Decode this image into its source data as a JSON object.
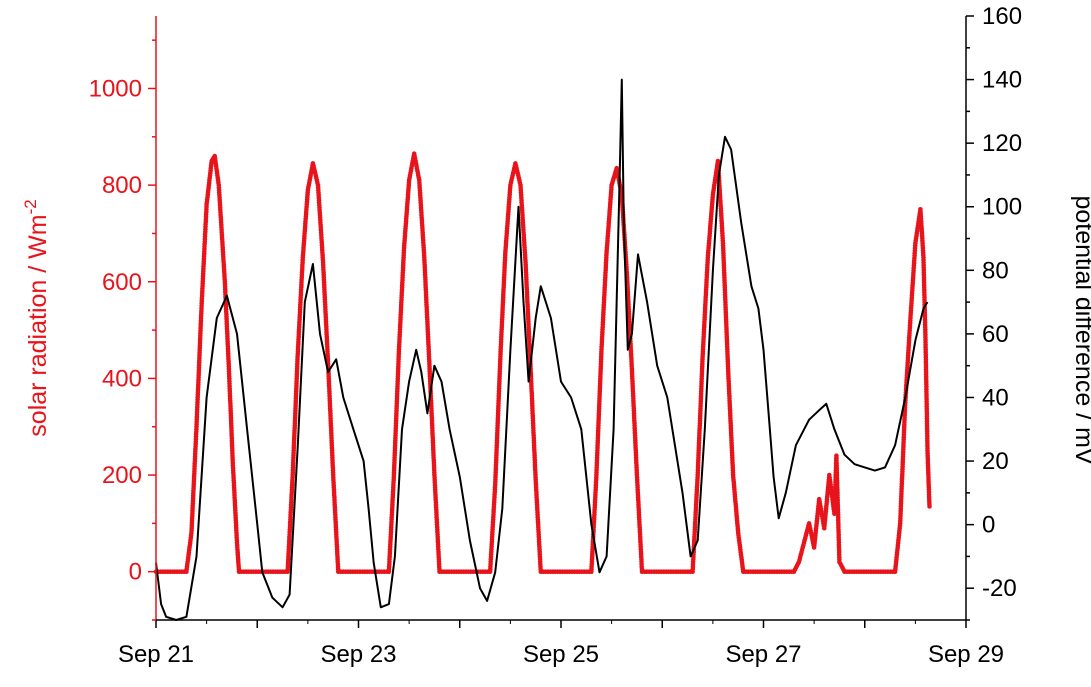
{
  "colors": {
    "radiation": "#e8141b",
    "potential": "#000000",
    "axis": "#000000"
  },
  "chart_data": {
    "type": "line",
    "x_unit": "days (Sep 21 = 0)",
    "x_range_labels": [
      "Sep 21",
      "Sep 29"
    ],
    "x_ticks": [
      {
        "day": 0,
        "label": "Sep 21"
      },
      {
        "day": 1,
        "label": ""
      },
      {
        "day": 2,
        "label": "Sep 23"
      },
      {
        "day": 3,
        "label": ""
      },
      {
        "day": 4,
        "label": "Sep 25"
      },
      {
        "day": 5,
        "label": ""
      },
      {
        "day": 6,
        "label": "Sep 27"
      },
      {
        "day": 7,
        "label": ""
      },
      {
        "day": 8,
        "label": "Sep 29"
      }
    ],
    "y_left": {
      "label": "solar radiation / Wm",
      "label_sup": "-2",
      "range": [
        -100,
        1150
      ],
      "ticks": [
        "0",
        "200",
        "400",
        "600",
        "800",
        "1000"
      ],
      "tick_values": [
        0,
        200,
        400,
        600,
        800,
        1000
      ]
    },
    "y_right": {
      "label": "potential difference / mV",
      "range": [
        -30,
        160
      ],
      "ticks": [
        "-20",
        "0",
        "20",
        "40",
        "60",
        "80",
        "100",
        "120",
        "140",
        "160"
      ],
      "tick_values": [
        -20,
        0,
        20,
        40,
        60,
        80,
        100,
        120,
        140,
        160
      ]
    },
    "series": [
      {
        "axis": "left",
        "style": "dots",
        "color": "#e8141b",
        "points": [
          [
            0.0,
            0
          ],
          [
            0.3,
            0
          ],
          [
            0.35,
            80
          ],
          [
            0.4,
            300
          ],
          [
            0.45,
            550
          ],
          [
            0.5,
            760
          ],
          [
            0.55,
            850
          ],
          [
            0.58,
            860
          ],
          [
            0.62,
            800
          ],
          [
            0.68,
            600
          ],
          [
            0.72,
            420
          ],
          [
            0.76,
            220
          ],
          [
            0.8,
            60
          ],
          [
            0.82,
            0
          ],
          [
            1.3,
            0
          ],
          [
            1.35,
            200
          ],
          [
            1.4,
            450
          ],
          [
            1.45,
            650
          ],
          [
            1.5,
            790
          ],
          [
            1.55,
            845
          ],
          [
            1.6,
            800
          ],
          [
            1.65,
            640
          ],
          [
            1.7,
            430
          ],
          [
            1.75,
            200
          ],
          [
            1.8,
            0
          ],
          [
            2.3,
            0
          ],
          [
            2.35,
            200
          ],
          [
            2.4,
            460
          ],
          [
            2.45,
            670
          ],
          [
            2.5,
            810
          ],
          [
            2.55,
            865
          ],
          [
            2.6,
            810
          ],
          [
            2.65,
            650
          ],
          [
            2.7,
            430
          ],
          [
            2.75,
            200
          ],
          [
            2.8,
            0
          ],
          [
            3.3,
            0
          ],
          [
            3.35,
            180
          ],
          [
            3.4,
            440
          ],
          [
            3.45,
            660
          ],
          [
            3.5,
            800
          ],
          [
            3.55,
            845
          ],
          [
            3.6,
            800
          ],
          [
            3.65,
            640
          ],
          [
            3.7,
            420
          ],
          [
            3.75,
            190
          ],
          [
            3.8,
            0
          ],
          [
            4.3,
            0
          ],
          [
            4.35,
            200
          ],
          [
            4.4,
            460
          ],
          [
            4.45,
            660
          ],
          [
            4.5,
            800
          ],
          [
            4.55,
            835
          ],
          [
            4.6,
            780
          ],
          [
            4.65,
            620
          ],
          [
            4.7,
            420
          ],
          [
            4.75,
            200
          ],
          [
            4.8,
            0
          ],
          [
            5.3,
            0
          ],
          [
            5.35,
            200
          ],
          [
            5.4,
            450
          ],
          [
            5.45,
            650
          ],
          [
            5.5,
            780
          ],
          [
            5.55,
            850
          ],
          [
            5.6,
            680
          ],
          [
            5.65,
            420
          ],
          [
            5.7,
            200
          ],
          [
            5.75,
            80
          ],
          [
            5.8,
            0
          ],
          [
            6.3,
            0
          ],
          [
            6.35,
            20
          ],
          [
            6.4,
            60
          ],
          [
            6.45,
            100
          ],
          [
            6.5,
            50
          ],
          [
            6.55,
            150
          ],
          [
            6.6,
            90
          ],
          [
            6.65,
            200
          ],
          [
            6.7,
            120
          ],
          [
            6.72,
            240
          ],
          [
            6.75,
            20
          ],
          [
            6.8,
            0
          ],
          [
            7.3,
            0
          ],
          [
            7.35,
            100
          ],
          [
            7.4,
            350
          ],
          [
            7.45,
            520
          ],
          [
            7.5,
            680
          ],
          [
            7.55,
            750
          ],
          [
            7.58,
            650
          ],
          [
            7.6,
            480
          ],
          [
            7.62,
            250
          ],
          [
            7.64,
            130
          ]
        ]
      },
      {
        "axis": "right",
        "style": "line",
        "color": "#000000",
        "points": [
          [
            0.0,
            -12
          ],
          [
            0.05,
            -25
          ],
          [
            0.1,
            -29
          ],
          [
            0.2,
            -30
          ],
          [
            0.3,
            -29
          ],
          [
            0.4,
            -10
          ],
          [
            0.5,
            40
          ],
          [
            0.6,
            65
          ],
          [
            0.7,
            72
          ],
          [
            0.8,
            60
          ],
          [
            0.9,
            30
          ],
          [
            1.0,
            0
          ],
          [
            1.05,
            -15
          ],
          [
            1.15,
            -23
          ],
          [
            1.25,
            -26
          ],
          [
            1.32,
            -22
          ],
          [
            1.4,
            25
          ],
          [
            1.47,
            70
          ],
          [
            1.55,
            82
          ],
          [
            1.62,
            60
          ],
          [
            1.7,
            48
          ],
          [
            1.78,
            52
          ],
          [
            1.85,
            40
          ],
          [
            1.95,
            30
          ],
          [
            2.05,
            20
          ],
          [
            2.1,
            5
          ],
          [
            2.15,
            -12
          ],
          [
            2.22,
            -26
          ],
          [
            2.3,
            -25
          ],
          [
            2.36,
            -10
          ],
          [
            2.43,
            30
          ],
          [
            2.5,
            45
          ],
          [
            2.57,
            55
          ],
          [
            2.62,
            48
          ],
          [
            2.68,
            35
          ],
          [
            2.75,
            50
          ],
          [
            2.82,
            45
          ],
          [
            2.9,
            30
          ],
          [
            3.0,
            15
          ],
          [
            3.1,
            -5
          ],
          [
            3.2,
            -20
          ],
          [
            3.27,
            -24
          ],
          [
            3.35,
            -15
          ],
          [
            3.42,
            5
          ],
          [
            3.5,
            55
          ],
          [
            3.58,
            100
          ],
          [
            3.63,
            70
          ],
          [
            3.68,
            45
          ],
          [
            3.75,
            65
          ],
          [
            3.8,
            75
          ],
          [
            3.9,
            65
          ],
          [
            4.0,
            45
          ],
          [
            4.1,
            40
          ],
          [
            4.2,
            30
          ],
          [
            4.3,
            0
          ],
          [
            4.38,
            -15
          ],
          [
            4.45,
            -10
          ],
          [
            4.52,
            30
          ],
          [
            4.58,
            110
          ],
          [
            4.6,
            140
          ],
          [
            4.62,
            95
          ],
          [
            4.66,
            55
          ],
          [
            4.7,
            60
          ],
          [
            4.76,
            85
          ],
          [
            4.85,
            70
          ],
          [
            4.95,
            50
          ],
          [
            5.05,
            40
          ],
          [
            5.2,
            10
          ],
          [
            5.28,
            -10
          ],
          [
            5.35,
            -5
          ],
          [
            5.42,
            30
          ],
          [
            5.5,
            80
          ],
          [
            5.56,
            110
          ],
          [
            5.62,
            122
          ],
          [
            5.68,
            118
          ],
          [
            5.78,
            95
          ],
          [
            5.88,
            75
          ],
          [
            5.95,
            68
          ],
          [
            6.0,
            55
          ],
          [
            6.05,
            35
          ],
          [
            6.1,
            15
          ],
          [
            6.15,
            2
          ],
          [
            6.22,
            10
          ],
          [
            6.32,
            25
          ],
          [
            6.45,
            33
          ],
          [
            6.55,
            36
          ],
          [
            6.62,
            38
          ],
          [
            6.7,
            30
          ],
          [
            6.8,
            22
          ],
          [
            6.9,
            19
          ],
          [
            7.0,
            18
          ],
          [
            7.1,
            17
          ],
          [
            7.2,
            18
          ],
          [
            7.3,
            25
          ],
          [
            7.4,
            40
          ],
          [
            7.5,
            58
          ],
          [
            7.58,
            68
          ],
          [
            7.62,
            70
          ]
        ]
      }
    ]
  }
}
